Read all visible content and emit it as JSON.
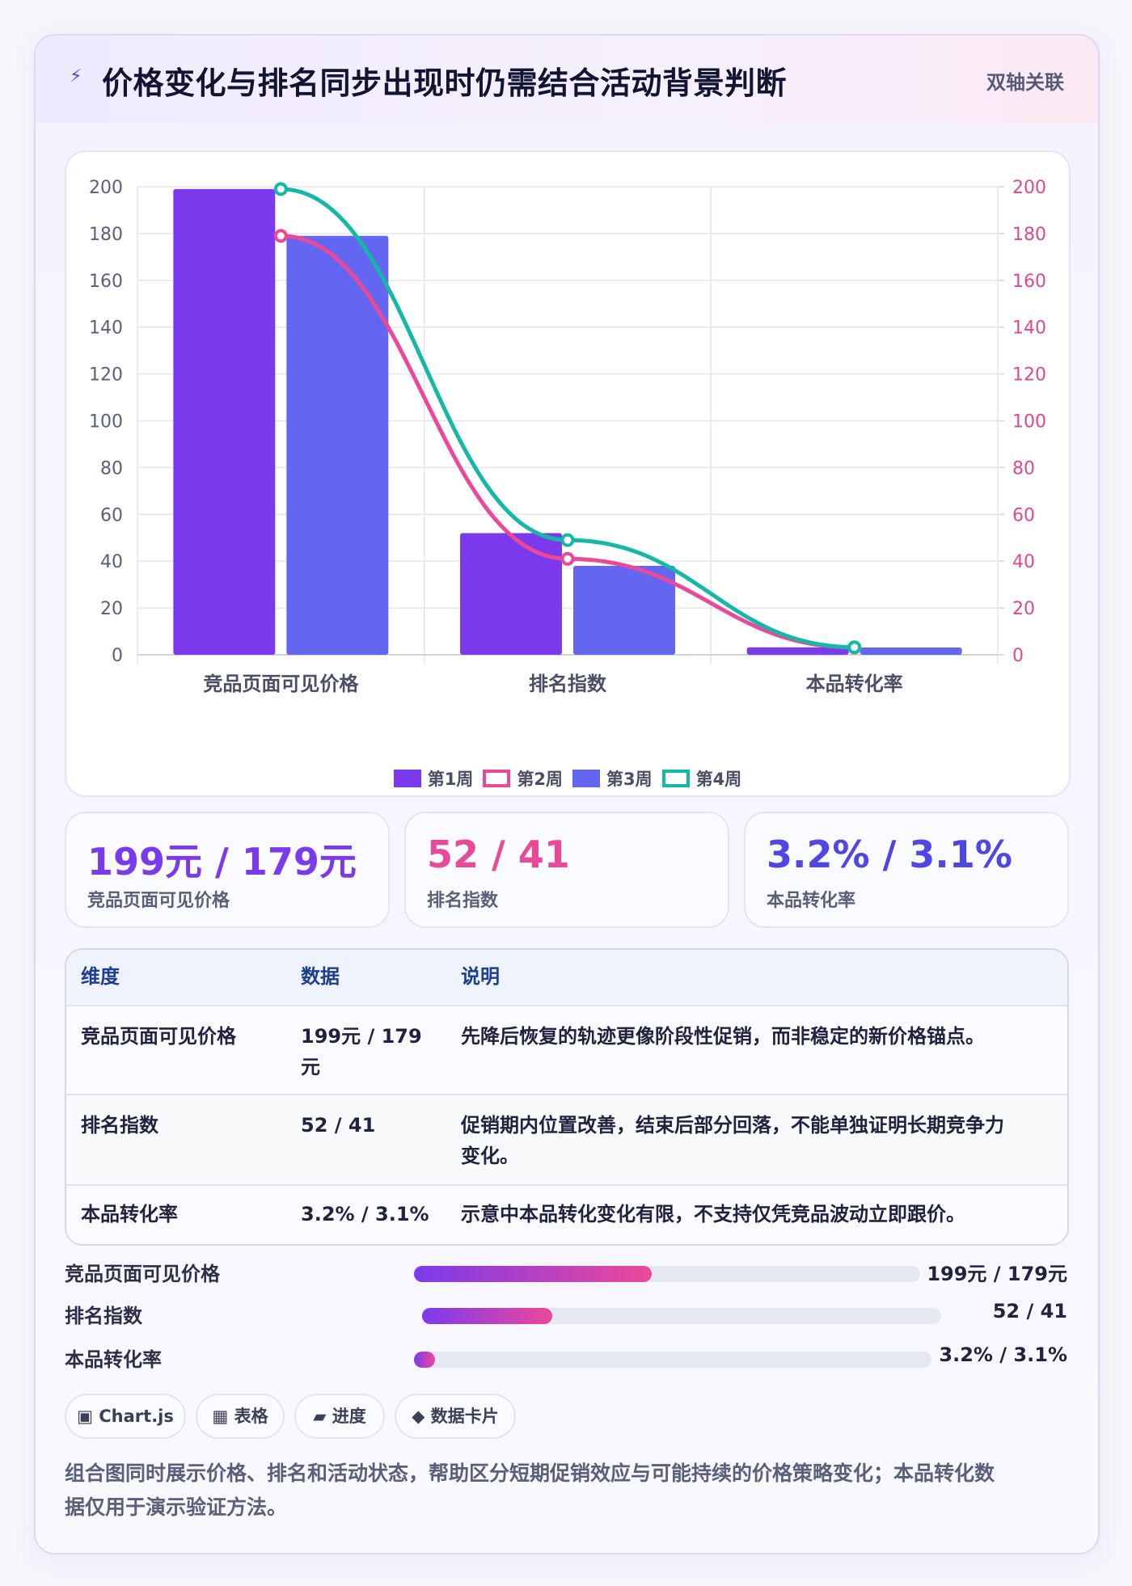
{
  "header": {
    "icon": "lightning-icon",
    "title": "价格变化与排名同步出现时仍需结合活动背景判断",
    "tag": "双轴关联"
  },
  "chart_data": {
    "type": "bar+line",
    "categories": [
      "竞品页面可见价格",
      "排名指数",
      "本品转化率"
    ],
    "y_left": {
      "min": 0,
      "max": 200,
      "ticks": [
        0,
        20,
        40,
        60,
        80,
        100,
        120,
        140,
        160,
        180,
        200
      ]
    },
    "y_right": {
      "min": 0,
      "max": 200,
      "ticks": [
        0,
        20,
        40,
        60,
        80,
        100,
        120,
        140,
        160,
        180,
        200
      ]
    },
    "grid": true,
    "legend_position": "bottom",
    "series": [
      {
        "name": "第1周",
        "type": "bar",
        "color": "#7c3aed",
        "values": [
          199,
          52,
          3.2
        ]
      },
      {
        "name": "第2周",
        "type": "line",
        "color": "#ec4899",
        "values": [
          179,
          41,
          3.1
        ]
      },
      {
        "name": "第3周",
        "type": "bar",
        "color": "#6366f1",
        "values": [
          179,
          38,
          3.1
        ]
      },
      {
        "name": "第4周",
        "type": "line",
        "color": "#14b8a6",
        "values": [
          199,
          49,
          3.2
        ]
      }
    ]
  },
  "metrics": [
    {
      "value": "199元 / 179元",
      "label": "竞品页面可见价格",
      "color": "#7c3aed"
    },
    {
      "value": "52 / 41",
      "label": "排名指数",
      "color": "#ec4899"
    },
    {
      "value": "3.2% / 3.1%",
      "label": "本品转化率",
      "color": "#4f46e5"
    }
  ],
  "table": {
    "headers": [
      "维度",
      "数据",
      "说明"
    ],
    "rows": [
      {
        "dim": "竞品页面可见价格",
        "data_line1": "199元 / 179",
        "data_line2": "元",
        "desc_line1": "先降后恢复的轨迹更像阶段性促销，而非稳定的新价格锚点。",
        "desc_line2": ""
      },
      {
        "dim": "排名指数",
        "data_line1": "52 / 41",
        "data_line2": "",
        "desc_line1": "促销期内位置改善，结束后部分回落，不能单独证明长期竞争力",
        "desc_line2": "变化。"
      },
      {
        "dim": "本品转化率",
        "data_line1": "3.2% / 3.1%",
        "data_line2": "",
        "desc_line1": "示意中本品转化变化有限，不支持仅凭竞品波动立即跟价。",
        "desc_line2": ""
      }
    ]
  },
  "progress": [
    {
      "label": "竞品页面可见价格",
      "value": "199元 / 179元",
      "fill": 0.47
    },
    {
      "label": "排名指数",
      "value": "52 / 41",
      "fill": 0.25
    },
    {
      "label": "本品转化率",
      "value": "3.2% / 3.1%",
      "fill": 0.04
    }
  ],
  "chips": [
    {
      "icon": "chart-icon",
      "glyph": "▣",
      "label": "Chart.js"
    },
    {
      "icon": "table-icon",
      "glyph": "▦",
      "label": "表格"
    },
    {
      "icon": "progress-icon",
      "glyph": "▰",
      "label": "进度"
    },
    {
      "icon": "diamond-icon",
      "glyph": "◆",
      "label": "数据卡片"
    }
  ],
  "note": {
    "line1": "组合图同时展示价格、排名和活动状态，帮助区分短期促销效应与可能持续的价格策略变化；本品转化数",
    "line2": "据仅用于演示验证方法。"
  }
}
